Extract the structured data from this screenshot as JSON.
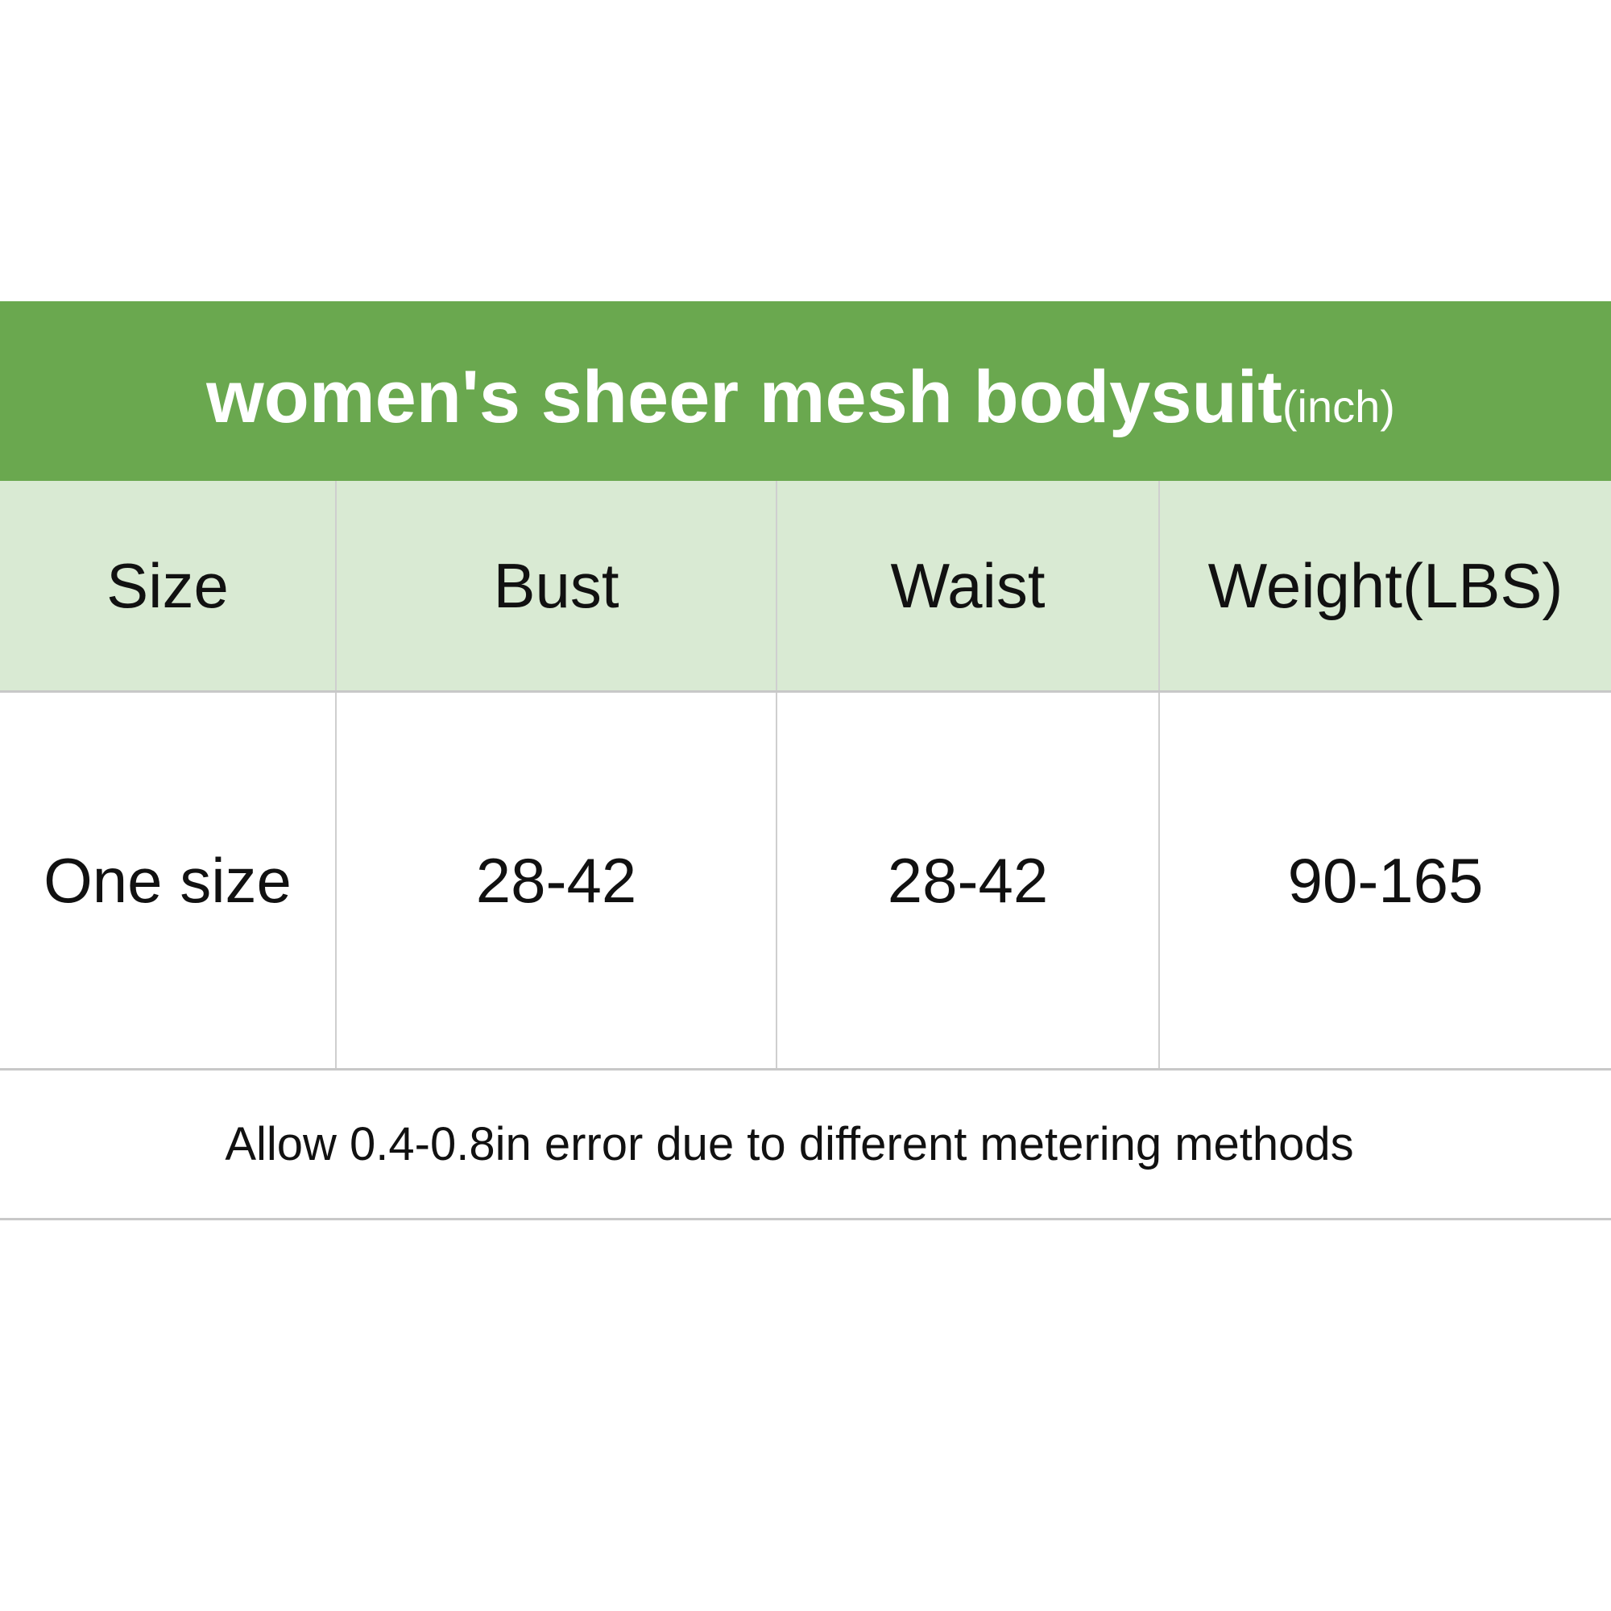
{
  "title": {
    "main": "women's sheer mesh bodysuit",
    "unit": "(inch)"
  },
  "colors": {
    "title_bg": "#6aa84f",
    "header_bg": "#d9ead3",
    "grid": "#c8c8c8"
  },
  "table": {
    "headers": [
      "Size",
      "Bust",
      "Waist",
      "Weight(LBS)"
    ],
    "rows": [
      [
        "One size",
        "28-42",
        "28-42",
        "90-165"
      ]
    ]
  },
  "note": "Allow 0.4-0.8in error due to different metering methods"
}
